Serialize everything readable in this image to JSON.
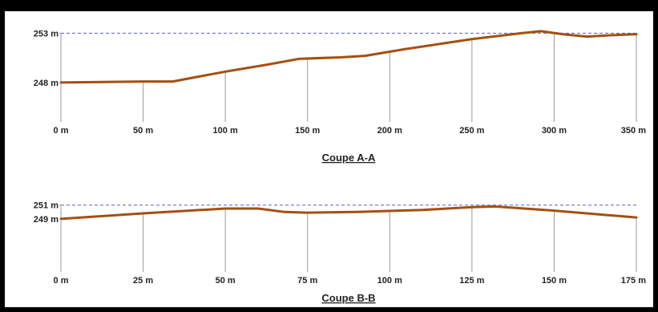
{
  "colors": {
    "profile": "#a44f10",
    "reference": "#5a5ae0",
    "grid": "#9a9a9a",
    "frame": "#000000",
    "background": "#ffffff"
  },
  "chart_data": [
    {
      "type": "line",
      "title": "Coupe A-A",
      "x_unit": "m",
      "xlim": [
        0,
        350
      ],
      "x_ticks": [
        0,
        50,
        100,
        150,
        200,
        250,
        300,
        350
      ],
      "x_tick_labels": [
        "0 m",
        "50 m",
        "100 m",
        "150 m",
        "200 m",
        "250 m",
        "300 m",
        "350 m"
      ],
      "ylim": [
        244,
        253.6
      ],
      "y_ticks": [
        248,
        253
      ],
      "y_tick_labels": [
        "248 m",
        "253 m"
      ],
      "grid": "vertical",
      "reference_line": {
        "y": 253,
        "style": "dashed"
      },
      "series": [
        {
          "x": [
            0,
            25,
            50,
            68,
            100,
            125,
            145,
            170,
            185,
            210,
            250,
            280,
            292,
            305,
            320,
            335,
            350
          ],
          "y": [
            248.0,
            248.05,
            248.1,
            248.1,
            249.1,
            249.8,
            250.4,
            250.55,
            250.7,
            251.4,
            252.4,
            253.0,
            253.2,
            252.9,
            252.65,
            252.8,
            252.9
          ]
        }
      ]
    },
    {
      "type": "line",
      "title": "Coupe B-B",
      "x_unit": "m",
      "xlim": [
        0,
        175
      ],
      "x_ticks": [
        0,
        25,
        50,
        75,
        100,
        125,
        150,
        175
      ],
      "x_tick_labels": [
        "0 m",
        "25 m",
        "50 m",
        "75 m",
        "100 m",
        "125 m",
        "150 m",
        "175 m"
      ],
      "ylim": [
        241.3,
        251.2
      ],
      "y_ticks": [
        249,
        251
      ],
      "y_tick_labels": [
        "249 m",
        "251 m"
      ],
      "grid": "vertical",
      "reference_line": {
        "y": 251,
        "style": "dashed"
      },
      "series": [
        {
          "x": [
            0,
            25,
            50,
            60,
            68,
            75,
            90,
            110,
            125,
            132,
            150,
            175
          ],
          "y": [
            249.0,
            249.8,
            250.5,
            250.5,
            250.0,
            249.9,
            250.0,
            250.3,
            250.7,
            250.8,
            250.2,
            249.2
          ]
        }
      ]
    }
  ]
}
